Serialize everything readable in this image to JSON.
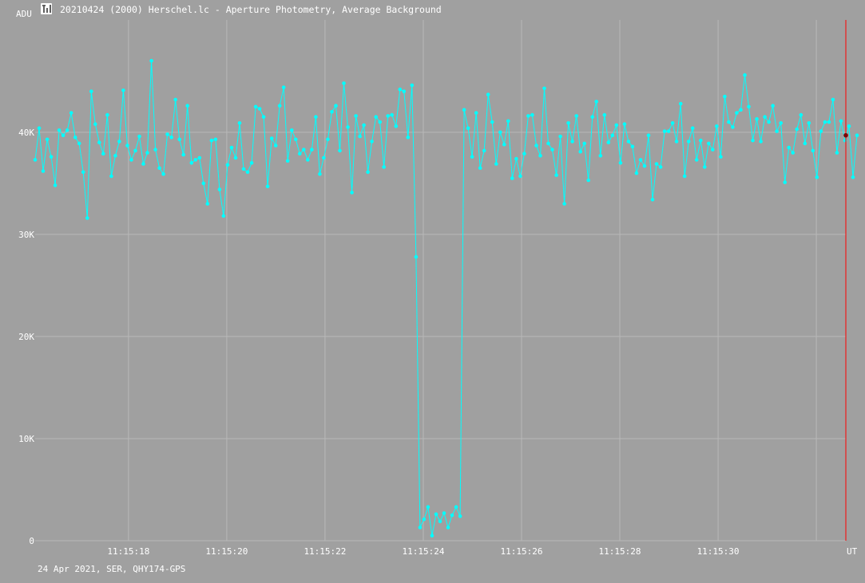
{
  "window": {
    "title": "20210424 (2000) Herschel.lc - Aperture Photometry, Average Background",
    "icon": "photometry-app-icon"
  },
  "footer": {
    "info": "24 Apr 2021, SER, QHY174-GPS"
  },
  "colors": {
    "background": "#a0a0a0",
    "grid": "#b8b8b8",
    "series": "#00ffff",
    "cursor": "#ff0000",
    "cursor_marker": "#800000",
    "text": "#ffffff"
  },
  "chart_data": {
    "type": "line",
    "title": "",
    "xlabel": "UT",
    "ylabel": "ADU",
    "grid": true,
    "xlim": [
      16.1,
      32.6
    ],
    "ylim": [
      0,
      51000
    ],
    "x_ticks": [
      {
        "value": 18,
        "label": "11:15:18"
      },
      {
        "value": 20,
        "label": "11:15:20"
      },
      {
        "value": 22,
        "label": "11:15:22"
      },
      {
        "value": 24,
        "label": "11:15:24"
      },
      {
        "value": 26,
        "label": "11:15:26"
      },
      {
        "value": 28,
        "label": "11:15:28"
      },
      {
        "value": 30,
        "label": "11:15:30"
      }
    ],
    "extra_vgrid": [
      32
    ],
    "y_ticks": [
      {
        "value": 0,
        "label": "0"
      },
      {
        "value": 10000,
        "label": "10K"
      },
      {
        "value": 20000,
        "label": "20K"
      },
      {
        "value": 30000,
        "label": "30K"
      },
      {
        "value": 40000,
        "label": "40K"
      }
    ],
    "cursor_x": 32.6,
    "cursor_y": 39700,
    "x_start": 16.1,
    "x_step": 0.0816,
    "series": [
      {
        "values": [
          37300,
          40400,
          36200,
          39300,
          37600,
          34800,
          40200,
          39700,
          40200,
          41900,
          39500,
          38900,
          36100,
          31600,
          44000,
          40800,
          39000,
          37900,
          41700,
          35700,
          37700,
          39100,
          44100,
          38700,
          37300,
          38200,
          39600,
          36900,
          38000,
          47000,
          38300,
          36500,
          35900,
          39800,
          39500,
          43200,
          39300,
          37800,
          42600,
          37000,
          37300,
          37500,
          35000,
          33000,
          39200,
          39300,
          34400,
          31800,
          36800,
          38500,
          37500,
          40900,
          36400,
          36100,
          37000,
          42500,
          42300,
          41500,
          34700,
          39400,
          38700,
          42600,
          44400,
          37200,
          40200,
          39300,
          37900,
          38300,
          37300,
          38300,
          41500,
          35900,
          37500,
          39300,
          42000,
          42600,
          38200,
          44800,
          40500,
          34100,
          41600,
          39600,
          40700,
          36100,
          39100,
          41500,
          41000,
          36600,
          41600,
          41700,
          40600,
          44200,
          44000,
          39500,
          44600,
          27800,
          1300,
          2100,
          3300,
          500,
          2600,
          1900,
          2700,
          1300,
          2500,
          3300,
          2400,
          42200,
          40400,
          37600,
          41900,
          36500,
          38200,
          43700,
          41000,
          36900,
          40000,
          38800,
          41100,
          35500,
          37400,
          35700,
          37900,
          41600,
          41700,
          38700,
          37700,
          44300,
          38900,
          38300,
          35800,
          39600,
          33000,
          40900,
          39100,
          41600,
          38100,
          38900,
          35300,
          41500,
          43000,
          37700,
          41700,
          39000,
          39700,
          40700,
          37000,
          40800,
          39100,
          38600,
          36000,
          37300,
          36700,
          39700,
          33400,
          36900,
          36600,
          40100,
          40100,
          40900,
          39100,
          42800,
          35700,
          39100,
          40400,
          37300,
          39200,
          36600,
          38900,
          38300,
          40600,
          37600,
          43500,
          41000,
          40500,
          41900,
          42200,
          45600,
          42500,
          39200,
          41300,
          39100,
          41500,
          41000,
          42600,
          40100,
          40900,
          35100,
          38500,
          38000,
          40300,
          41700,
          38900,
          40900,
          38200,
          35600,
          40100,
          41000,
          41000,
          43200,
          38000,
          41100,
          39200,
          40600,
          35600,
          39700
        ]
      }
    ]
  }
}
